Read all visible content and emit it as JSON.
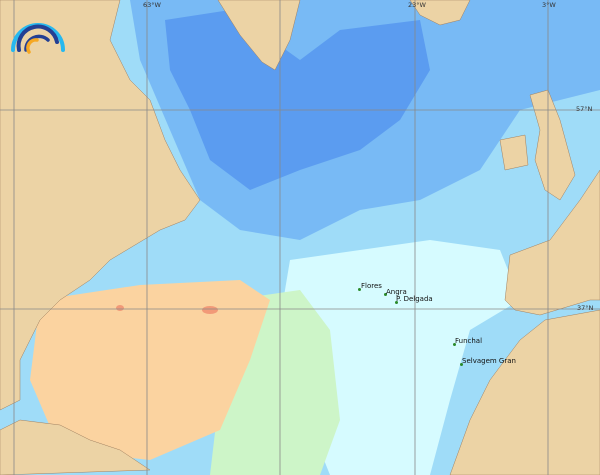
{
  "map": {
    "colors": {
      "land": "#ecd3a5",
      "deep_blue": "#5b9cf0",
      "mid_blue": "#78baf5",
      "light_blue": "#9fdcf8",
      "pale": "#d6fbff",
      "green": "#cdf5c8",
      "orange": "#fbd3a0",
      "red": "#f29a78",
      "grid": "#888888"
    },
    "longitude_labels": [
      "63°W",
      "23°W",
      "3°W"
    ],
    "latitude_labels": [
      "57°N",
      "37°N"
    ],
    "places": [
      {
        "name": "Flores"
      },
      {
        "name": "Angra"
      },
      {
        "name": "P. Delgada"
      },
      {
        "name": "Funchal"
      },
      {
        "name": "Selvagem Gran"
      }
    ],
    "logo": "arc-waves-logo"
  }
}
